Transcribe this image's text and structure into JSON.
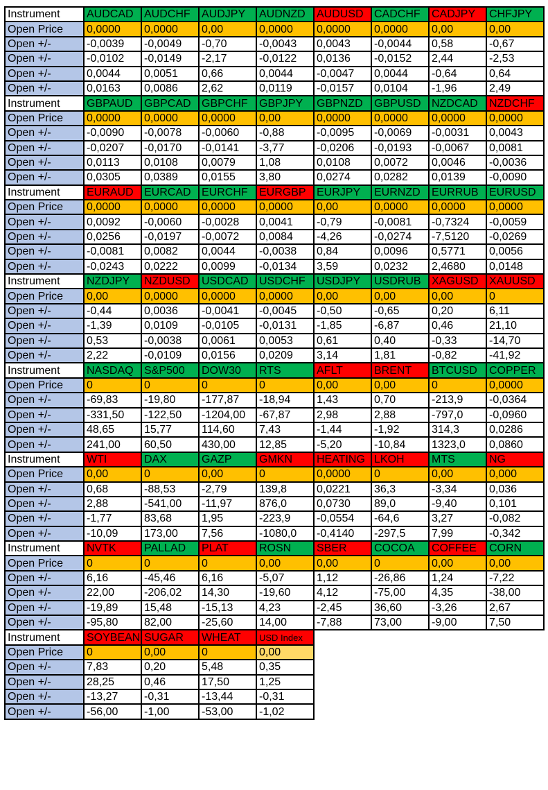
{
  "labels": {
    "instrument": "Instrument",
    "open_price": "Open Price",
    "change": "Open +/-"
  },
  "colors": {
    "up": "#00B050",
    "down": "#FF0000",
    "open_price": "#FFC000",
    "row_label": "#B4C6E7"
  },
  "blocks": [
    {
      "instruments": [
        {
          "name": "AUDCAD",
          "status": "up",
          "open": "0,0000",
          "changes": [
            "-0,0039",
            "-0,0102",
            "0,0044",
            "0,0163"
          ]
        },
        {
          "name": "AUDCHF",
          "status": "up",
          "open": "0,0000",
          "changes": [
            "-0,0049",
            "-0,0149",
            "0,0051",
            "0,0086"
          ]
        },
        {
          "name": "AUDJPY",
          "status": "up",
          "open": "0,00",
          "changes": [
            "-0,70",
            "-2,17",
            "0,66",
            "2,62"
          ]
        },
        {
          "name": "AUDNZD",
          "status": "up",
          "open": "0,0000",
          "changes": [
            "-0,0043",
            "-0,0122",
            "0,0044",
            "0,0119"
          ]
        },
        {
          "name": "AUDUSD",
          "status": "down",
          "open": "0,0000",
          "changes": [
            "0,0043",
            "0,0136",
            "-0,0047",
            "-0,0157"
          ]
        },
        {
          "name": "CADCHF",
          "status": "up",
          "open": "0,0000",
          "changes": [
            "-0,0044",
            "-0,0152",
            "0,0044",
            "0,0104"
          ]
        },
        {
          "name": "CADJPY",
          "status": "down",
          "open": "0,00",
          "changes": [
            "0,58",
            "2,44",
            "-0,64",
            "-1,96"
          ]
        },
        {
          "name": "CHFJPY",
          "status": "up",
          "open": "0,00",
          "changes": [
            "-0,67",
            "-2,53",
            "0,64",
            "2,49"
          ]
        }
      ]
    },
    {
      "instruments": [
        {
          "name": "GBPAUD",
          "status": "up",
          "open": "0,0000",
          "changes": [
            "-0,0090",
            "-0,0207",
            "0,0113",
            "0,0305"
          ]
        },
        {
          "name": "GBPCAD",
          "status": "up",
          "open": "0,0000",
          "changes": [
            "-0,0078",
            "-0,0170",
            "0,0108",
            "0,0389"
          ]
        },
        {
          "name": "GBPCHF",
          "status": "up",
          "open": "0,0000",
          "changes": [
            "-0,0060",
            "-0,0141",
            "0,0079",
            "0,0155"
          ]
        },
        {
          "name": "GBPJPY",
          "status": "up",
          "open": "0,00",
          "changes": [
            "-0,88",
            "-3,77",
            "1,08",
            "3,80"
          ]
        },
        {
          "name": "GBPNZD",
          "status": "up",
          "open": "0,0000",
          "changes": [
            "-0,0095",
            "-0,0206",
            "0,0108",
            "0,0274"
          ]
        },
        {
          "name": "GBPUSD",
          "status": "up",
          "open": "0,0000",
          "changes": [
            "-0,0069",
            "-0,0193",
            "0,0072",
            "0,0282"
          ]
        },
        {
          "name": "NZDCAD",
          "status": "up",
          "open": "0,0000",
          "changes": [
            "-0,0031",
            "-0,0067",
            "0,0046",
            "0,0139"
          ]
        },
        {
          "name": "NZDCHF",
          "status": "down",
          "open": "0,0000",
          "changes": [
            "0,0043",
            "0,0081",
            "-0,0036",
            "-0,0090"
          ]
        }
      ]
    },
    {
      "instruments": [
        {
          "name": "EURAUD",
          "status": "down",
          "open": "0,0000",
          "changes": [
            "0,0092",
            "0,0256",
            "-0,0081",
            "-0,0243"
          ]
        },
        {
          "name": "EURCAD",
          "status": "up",
          "open": "0,0000",
          "changes": [
            "-0,0060",
            "-0,0197",
            "0,0082",
            "0,0222"
          ]
        },
        {
          "name": "EURCHF",
          "status": "up",
          "open": "0,0000",
          "changes": [
            "-0,0028",
            "-0,0072",
            "0,0044",
            "0,0099"
          ]
        },
        {
          "name": "EURGBP",
          "status": "down",
          "open": "0,0000",
          "changes": [
            "0,0041",
            "0,0084",
            "-0,0038",
            "-0,0134"
          ]
        },
        {
          "name": "EURJPY",
          "status": "up",
          "open": "0,00",
          "changes": [
            "-0,79",
            "-4,26",
            "0,84",
            "3,59"
          ]
        },
        {
          "name": "EURNZD",
          "status": "up",
          "open": "0,0000",
          "changes": [
            "-0,0081",
            "-0,0274",
            "0,0096",
            "0,0232"
          ]
        },
        {
          "name": "EURRUB",
          "status": "up",
          "open": "0,0000",
          "changes": [
            "-0,7324",
            "-7,5120",
            "0,5771",
            "2,4680"
          ]
        },
        {
          "name": "EURUSD",
          "status": "up",
          "open": "0,0000",
          "changes": [
            "-0,0059",
            "-0,0269",
            "0,0056",
            "0,0148"
          ]
        }
      ]
    },
    {
      "instruments": [
        {
          "name": "NZDJPY",
          "status": "up",
          "open": "0,00",
          "changes": [
            "-0,44",
            "-1,39",
            "0,53",
            "2,22"
          ]
        },
        {
          "name": "NZDUSD",
          "status": "down",
          "open": "0,0000",
          "changes": [
            "0,0036",
            "0,0109",
            "-0,0038",
            "-0,0109"
          ]
        },
        {
          "name": "USDCAD",
          "status": "up",
          "open": "0,0000",
          "changes": [
            "-0,0041",
            "-0,0105",
            "0,0061",
            "0,0156"
          ]
        },
        {
          "name": "USDCHF",
          "status": "up",
          "open": "0,0000",
          "changes": [
            "-0,0045",
            "-0,0131",
            "0,0053",
            "0,0209"
          ]
        },
        {
          "name": "USDJPY",
          "status": "up",
          "open": "0,00",
          "changes": [
            "-0,50",
            "-1,85",
            "0,61",
            "3,14"
          ]
        },
        {
          "name": "USDRUB",
          "status": "up",
          "open": "0,00",
          "changes": [
            "-0,65",
            "-6,87",
            "0,40",
            "1,81"
          ]
        },
        {
          "name": "XAGUSD",
          "status": "down",
          "open": "0,00",
          "changes": [
            "0,20",
            "0,46",
            "-0,33",
            "-0,82"
          ]
        },
        {
          "name": "XAUUSD",
          "status": "down",
          "open": "0",
          "changes": [
            "6,11",
            "21,10",
            "-14,70",
            "-41,92"
          ]
        }
      ]
    },
    {
      "instruments": [
        {
          "name": "NASDAQ",
          "status": "up",
          "open": "0",
          "changes": [
            "-69,83",
            "-331,50",
            "48,65",
            "241,00"
          ]
        },
        {
          "name": "S&P500",
          "status": "up",
          "open": "0",
          "changes": [
            "-19,80",
            "-122,50",
            "15,77",
            "60,50"
          ]
        },
        {
          "name": "DOW30",
          "status": "up",
          "open": "0",
          "changes": [
            "-177,87",
            "-1204,00",
            "114,60",
            "430,00"
          ]
        },
        {
          "name": "RTS",
          "status": "up",
          "open": "0",
          "changes": [
            "-18,94",
            "-67,87",
            "7,43",
            "12,85"
          ]
        },
        {
          "name": "AFLT",
          "status": "down",
          "open": "0,00",
          "changes": [
            "1,43",
            "2,98",
            "-1,44",
            "-5,20"
          ]
        },
        {
          "name": "BRENT",
          "status": "down",
          "open": "0,00",
          "changes": [
            "0,70",
            "2,88",
            "-1,92",
            "-10,84"
          ]
        },
        {
          "name": "BTCUSD",
          "status": "up",
          "open": "0",
          "changes": [
            "-213,9",
            "-797,0",
            "314,3",
            "1323,0"
          ]
        },
        {
          "name": "COPPER",
          "status": "up",
          "open": "0,0000",
          "changes": [
            "-0,0364",
            "-0,0960",
            "0,0286",
            "0,0860"
          ]
        }
      ]
    },
    {
      "instruments": [
        {
          "name": "WTI",
          "status": "down",
          "open": "0,00",
          "changes": [
            "0,68",
            "2,88",
            "-1,77",
            "-10,09"
          ]
        },
        {
          "name": "DAX",
          "status": "up",
          "open": "0",
          "changes": [
            "-88,53",
            "-541,00",
            "83,68",
            "173,00"
          ]
        },
        {
          "name": "GAZP",
          "status": "up",
          "open": "0,00",
          "changes": [
            "-2,79",
            "-11,97",
            "1,95",
            "7,56"
          ]
        },
        {
          "name": "GMKN",
          "status": "down",
          "open": "0",
          "changes": [
            "139,8",
            "876,0",
            "-223,9",
            "-1080,0"
          ]
        },
        {
          "name": "HEATING",
          "status": "down",
          "open": "0,0000",
          "changes": [
            "0,0221",
            "0,0730",
            "-0,0554",
            "-0,4140"
          ]
        },
        {
          "name": "LKOH",
          "status": "down",
          "open": "0",
          "changes": [
            "36,3",
            "89,0",
            "-64,6",
            "-297,5"
          ]
        },
        {
          "name": "MTS",
          "status": "up",
          "open": "0,00",
          "changes": [
            "-3,34",
            "-9,40",
            "3,27",
            "7,99"
          ]
        },
        {
          "name": "NG",
          "status": "down",
          "open": "0,000",
          "changes": [
            "0,036",
            "0,101",
            "-0,082",
            "-0,342"
          ]
        }
      ]
    },
    {
      "instruments": [
        {
          "name": "NVTK",
          "status": "down",
          "open": "0",
          "changes": [
            "6,16",
            "22,00",
            "-19,89",
            "-95,80"
          ]
        },
        {
          "name": "PALLAD",
          "status": "up",
          "open": "0",
          "changes": [
            "-45,46",
            "-206,02",
            "15,48",
            "82,00"
          ]
        },
        {
          "name": "PLAT",
          "status": "down",
          "open": "0",
          "changes": [
            "6,16",
            "14,30",
            "-15,13",
            "-25,60"
          ]
        },
        {
          "name": "ROSN",
          "status": "up",
          "open": "0,00",
          "changes": [
            "-5,07",
            "-19,60",
            "4,23",
            "14,00"
          ]
        },
        {
          "name": "SBER",
          "status": "down",
          "open": "0,00",
          "changes": [
            "1,12",
            "4,12",
            "-2,45",
            "-7,88"
          ]
        },
        {
          "name": "COCOA",
          "status": "up",
          "open": "0",
          "changes": [
            "-26,86",
            "-75,00",
            "36,60",
            "73,00"
          ]
        },
        {
          "name": "COFFEE",
          "status": "down",
          "open": "0,00",
          "changes": [
            "1,24",
            "4,35",
            "-3,26",
            "-9,00"
          ]
        },
        {
          "name": "CORN",
          "status": "up",
          "open": "0,00",
          "changes": [
            "-7,22",
            "-38,00",
            "2,67",
            "7,50"
          ]
        }
      ]
    },
    {
      "instruments": [
        {
          "name": "SOYBEAN",
          "status": "down",
          "open": "0",
          "changes": [
            "7,83",
            "28,25",
            "-13,27",
            "-56,00"
          ]
        },
        {
          "name": "SUGAR",
          "status": "down",
          "open": "0,00",
          "changes": [
            "0,20",
            "0,46",
            "-0,31",
            "-1,00"
          ]
        },
        {
          "name": "WHEAT",
          "status": "down",
          "open": "0",
          "changes": [
            "5,48",
            "17,50",
            "-13,44",
            "-53,00"
          ]
        },
        {
          "name": "USD Index",
          "status": "down",
          "open": "0,00",
          "changes": [
            "0,35",
            "1,25",
            "-0,31",
            "-1,02"
          ]
        }
      ]
    }
  ]
}
